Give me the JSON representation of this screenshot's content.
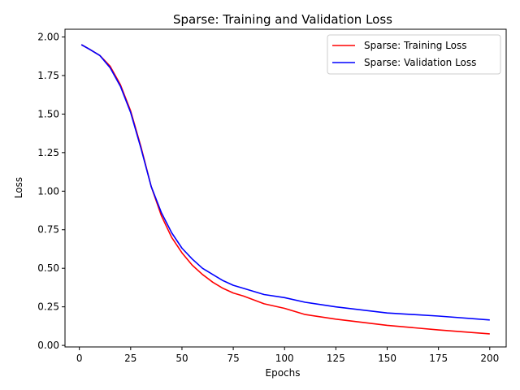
{
  "chart_data": {
    "type": "line",
    "title": "Sparse: Training and Validation Loss",
    "xlabel": "Epochs",
    "ylabel": "Loss",
    "xlim": [
      -7,
      208
    ],
    "ylim": [
      -0.01,
      2.05
    ],
    "xticks": [
      0,
      25,
      50,
      75,
      100,
      125,
      150,
      175,
      200
    ],
    "xtick_labels": [
      "0",
      "25",
      "50",
      "75",
      "100",
      "125",
      "150",
      "175",
      "200"
    ],
    "yticks": [
      0.0,
      0.25,
      0.5,
      0.75,
      1.0,
      1.25,
      1.5,
      1.75,
      2.0
    ],
    "ytick_labels": [
      "0.00",
      "0.25",
      "0.50",
      "0.75",
      "1.00",
      "1.25",
      "1.50",
      "1.75",
      "2.00"
    ],
    "grid": false,
    "legend_position": "upper right",
    "x": [
      1,
      5,
      10,
      15,
      20,
      25,
      30,
      35,
      40,
      45,
      50,
      55,
      60,
      65,
      70,
      75,
      80,
      90,
      100,
      110,
      125,
      150,
      175,
      200
    ],
    "series": [
      {
        "name": "Sparse: Training Loss",
        "color": "#ff0000",
        "values": [
          1.95,
          1.92,
          1.88,
          1.81,
          1.69,
          1.52,
          1.29,
          1.03,
          0.84,
          0.7,
          0.6,
          0.52,
          0.46,
          0.41,
          0.37,
          0.34,
          0.32,
          0.27,
          0.24,
          0.2,
          0.17,
          0.13,
          0.1,
          0.075
        ]
      },
      {
        "name": "Sparse: Validation Loss",
        "color": "#0000ff",
        "values": [
          1.95,
          1.92,
          1.88,
          1.8,
          1.68,
          1.51,
          1.28,
          1.03,
          0.86,
          0.73,
          0.63,
          0.56,
          0.5,
          0.46,
          0.42,
          0.39,
          0.37,
          0.33,
          0.31,
          0.28,
          0.25,
          0.21,
          0.19,
          0.165
        ]
      }
    ]
  }
}
